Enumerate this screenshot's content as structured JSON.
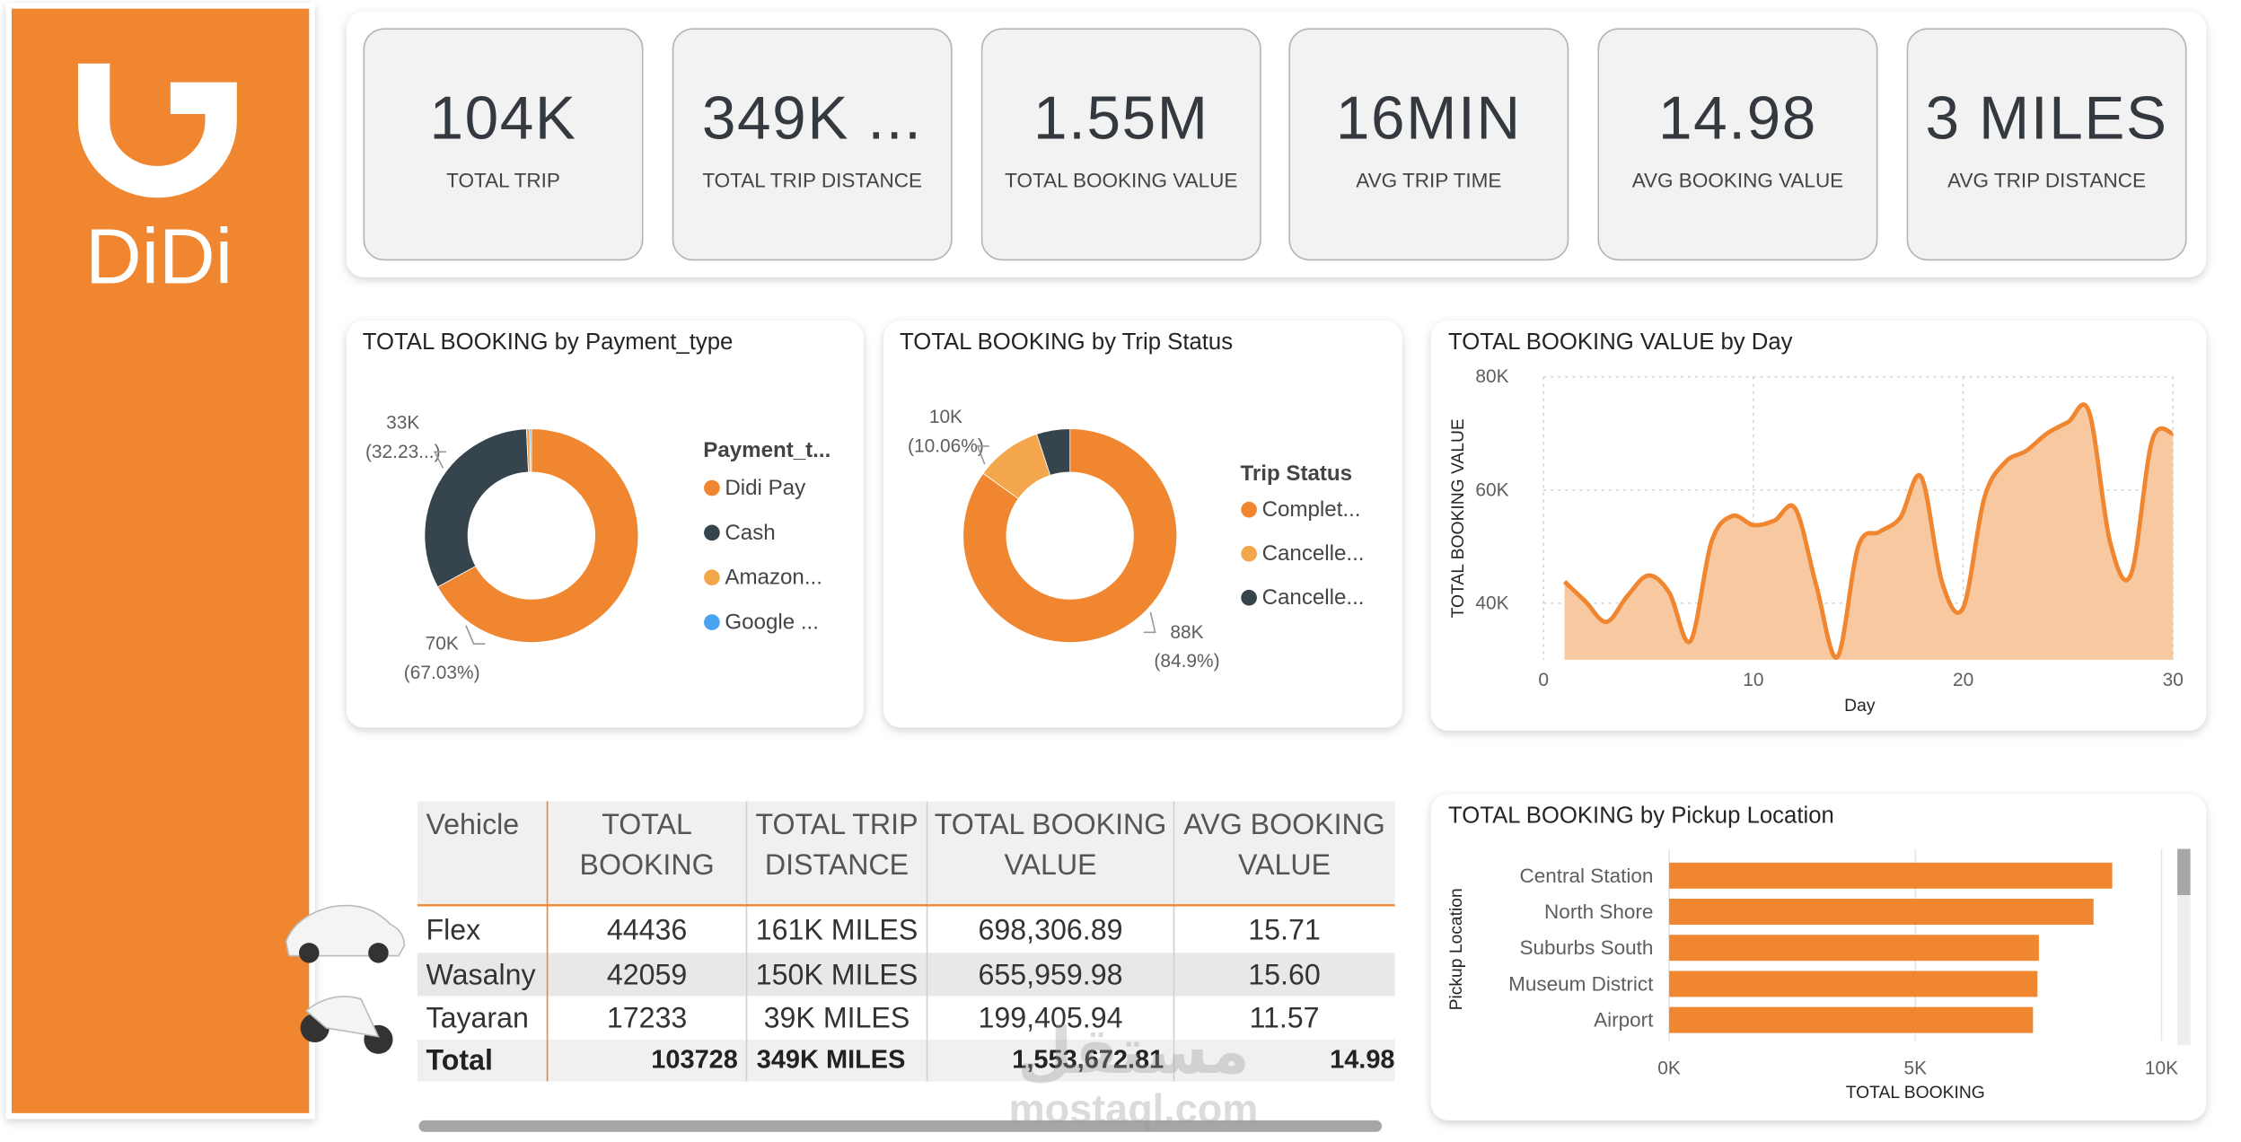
{
  "logo": "DiDi",
  "watermark": [
    "مستقل",
    "mostaql.com"
  ],
  "kpis": [
    {
      "value": "104K",
      "label": "TOTAL TRIP"
    },
    {
      "value": "349K ...",
      "label": "TOTAL TRIP DISTANCE"
    },
    {
      "value": "1.55M",
      "label": "TOTAL BOOKING VALUE"
    },
    {
      "value": "16MIN",
      "label": "AVG TRIP TIME"
    },
    {
      "value": "14.98",
      "label": "AVG BOOKING VALUE"
    },
    {
      "value": "3 MILES",
      "label": "AVG TRIP DISTANCE"
    }
  ],
  "chart_data": [
    {
      "type": "pie",
      "title": "TOTAL BOOKING by Payment_type",
      "legend_title": "Payment_t...",
      "categories": [
        "Didi  Pay",
        "Cash",
        "Amazon...",
        "Google ..."
      ],
      "values": [
        67.03,
        32.23,
        0.5,
        0.24
      ],
      "value_labels": [
        [
          "70K",
          "(67.03%)"
        ],
        [
          "33K",
          "(32.23...)"
        ],
        null,
        null
      ],
      "colors": [
        "#f0862f",
        "#36444e",
        "#f3a64c",
        "#4aa3f0"
      ]
    },
    {
      "type": "pie",
      "title": "TOTAL BOOKING by Trip Status",
      "legend_title": "Trip Status",
      "categories": [
        "Complet...",
        "Cancelle...",
        "Cancelle..."
      ],
      "values": [
        84.9,
        10.06,
        5.04
      ],
      "value_labels": [
        [
          "88K",
          "(84.9%)"
        ],
        [
          "10K",
          "(10.06%)"
        ],
        null
      ],
      "colors": [
        "#f0862f",
        "#f3a64c",
        "#36444e"
      ]
    },
    {
      "type": "area",
      "title": "TOTAL BOOKING VALUE by Day",
      "x_label": "Day",
      "y_label": "TOTAL BOOKING VALUE",
      "x": [
        1,
        2,
        3,
        4,
        5,
        6,
        7,
        8,
        9,
        10,
        11,
        12,
        13,
        14,
        15,
        16,
        17,
        18,
        19,
        20,
        21,
        22,
        23,
        24,
        25,
        26,
        27,
        28,
        29,
        30
      ],
      "values": [
        43800,
        40300,
        36700,
        41300,
        44900,
        41800,
        33300,
        50800,
        55400,
        53800,
        54600,
        56700,
        43100,
        30500,
        50000,
        52600,
        55100,
        62300,
        43600,
        39200,
        58500,
        64900,
        66900,
        70000,
        72000,
        73800,
        50800,
        45100,
        68700,
        70000
      ],
      "color": "#f0862f",
      "fill_color": "#f8c9a0",
      "xlim": [
        0,
        30
      ],
      "xticks": [
        0,
        10,
        20,
        30
      ],
      "ylim": [
        30000,
        80000
      ],
      "yticks": [
        {
          "value": 40000,
          "label": "40K"
        },
        {
          "value": 60000,
          "label": "60K"
        },
        {
          "value": 80000,
          "label": "80K"
        }
      ],
      "grid": true
    },
    {
      "type": "hbar",
      "title": "TOTAL BOOKING by Pickup Location",
      "x_label": "TOTAL BOOKING",
      "y_label": "Pickup Location",
      "categories": [
        "Central Station",
        "North Shore",
        "Suburbs South",
        "Museum District",
        "Airport"
      ],
      "values": [
        9000,
        8620,
        7510,
        7480,
        7390
      ],
      "color": "#f0862f",
      "xlim": [
        0,
        10000
      ],
      "xticks": [
        {
          "value": 0,
          "label": "0K"
        },
        {
          "value": 5000,
          "label": "5K"
        },
        {
          "value": 10000,
          "label": "10K"
        }
      ],
      "grid": true
    }
  ],
  "table": {
    "columns": [
      [
        "Vehicle"
      ],
      [
        "TOTAL",
        "BOOKING"
      ],
      [
        "TOTAL TRIP",
        "DISTANCE"
      ],
      [
        "TOTAL BOOKING",
        "VALUE"
      ],
      [
        "AVG BOOKING",
        "VALUE"
      ]
    ],
    "rows": [
      [
        "Flex",
        "44436",
        "161K MILES",
        "698,306.89",
        "15.71"
      ],
      [
        "Wasalny",
        "42059",
        "150K MILES",
        "655,959.98",
        "15.60"
      ],
      [
        "Tayaran",
        "17233",
        "39K MILES",
        "199,405.94",
        "11.57"
      ]
    ],
    "total": [
      "Total",
      "103728",
      "349K MILES",
      "1,553,672.81",
      "14.98"
    ]
  }
}
